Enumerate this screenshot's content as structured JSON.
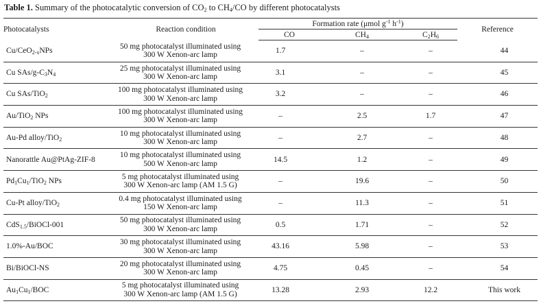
{
  "caption": {
    "label": "Table 1.",
    "text_html": "Summary of the photocatalytic conversion of CO<sub>2</sub> to CH<sub>4</sub>/CO by different photocatalysts"
  },
  "headers": {
    "photocatalysts": "Photocatalysts",
    "reaction_condition": "Reaction condition",
    "formation_rate_html": "Formation rate (μmol g<sup>-1</sup> h<sup>-1</sup>)",
    "co": "CO",
    "ch4_html": "CH<sub>4</sub>",
    "c2h6_html": "C<sub>2</sub>H<sub>6</sub>",
    "reference": "Reference"
  },
  "rows": [
    {
      "catalyst_html": "Cu/CeO<sub>2-x</sub>NPs",
      "condition_line1": "50 mg photocatalyst illuminated using",
      "condition_line2": "300 W Xenon-arc lamp",
      "co": "1.7",
      "ch4": "–",
      "c2h6": "–",
      "reference": "44"
    },
    {
      "catalyst_html": "Cu SAs/g-C<sub>3</sub>N<sub>4</sub>",
      "condition_line1": "25 mg photocatalyst illuminated using",
      "condition_line2": "300 W Xenon-arc lamp",
      "co": "3.1",
      "ch4": "–",
      "c2h6": "–",
      "reference": "45"
    },
    {
      "catalyst_html": "Cu SAs/TiO<sub>2</sub>",
      "condition_line1": "100 mg photocatalyst illuminated using",
      "condition_line2": "300 W Xenon-arc lamp",
      "co": "3.2",
      "ch4": "–",
      "c2h6": "–",
      "reference": "46"
    },
    {
      "catalyst_html": "Au/TiO<sub>2</sub> NPs",
      "condition_line1": "100 mg photocatalyst illuminated using",
      "condition_line2": "300 W Xenon-arc lamp",
      "co": "–",
      "ch4": "2.5",
      "c2h6": "1.7",
      "reference": "47"
    },
    {
      "catalyst_html": "Au-Pd alloy/TiO<sub>2</sub>",
      "condition_line1": "10 mg photocatalyst illuminated using",
      "condition_line2": "300 W Xenon-arc lamp",
      "co": "–",
      "ch4": "2.7",
      "c2h6": "–",
      "reference": "48"
    },
    {
      "catalyst_html": "Nanorattle Au@PtAg-ZIF-8",
      "condition_line1": "10 mg photocatalyst illuminated using",
      "condition_line2": "500 W Xenon-arc lamp",
      "co": "14.5",
      "ch4": "1.2",
      "c2h6": "–",
      "reference": "49"
    },
    {
      "catalyst_html": "Pd<sub>1</sub>Cu<sub>1</sub>/TiO<sub>2</sub> NPs",
      "condition_line1": "5 mg photocatalyst illuminated using",
      "condition_line2": "300 W Xenon-arc lamp (AM 1.5 G)",
      "co": "–",
      "ch4": "19.6",
      "c2h6": "–",
      "reference": "50"
    },
    {
      "catalyst_html": "Cu-Pt alloy/TiO<sub>2</sub>",
      "condition_line1": "0.4 mg photocatalyst illuminated using",
      "condition_line2": "150 W Xenon-arc lamp",
      "co": "–",
      "ch4": "11.3",
      "c2h6": "–",
      "reference": "51"
    },
    {
      "catalyst_html": "CdS<sub>1.5</sub>/BiOCl-001",
      "condition_line1": "50 mg photocatalyst illuminated using",
      "condition_line2": "300 W Xenon-arc lamp",
      "co": "0.5",
      "ch4": "1.71",
      "c2h6": "–",
      "reference": "52"
    },
    {
      "catalyst_html": "1.0%-Au/BOC",
      "condition_line1": "30 mg photocatalyst illuminated using",
      "condition_line2": "300 W Xenon-arc lamp",
      "co": "43.16",
      "ch4": "5.98",
      "c2h6": "–",
      "reference": "53"
    },
    {
      "catalyst_html": "Bi/BiOCl-NS",
      "condition_line1": "20 mg photocatalyst illuminated using",
      "condition_line2": "300 W Xenon-arc lamp",
      "co": "4.75",
      "ch4": "0.45",
      "c2h6": "–",
      "reference": "54"
    },
    {
      "catalyst_html": "Au<sub>1</sub>Cu<sub>1</sub>/BOC",
      "condition_line1": "5 mg photocatalyst illuminated using",
      "condition_line2": "300 W Xenon-arc lamp (AM 1.5 G)",
      "co": "13.28",
      "ch4": "2.93",
      "c2h6": "12.2",
      "reference": "This work"
    }
  ]
}
